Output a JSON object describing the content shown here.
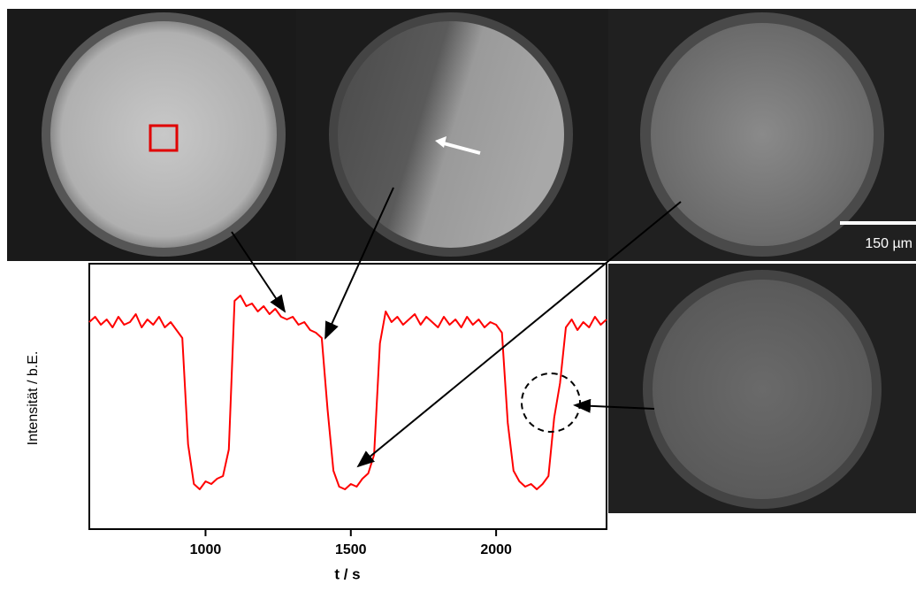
{
  "chart_data": {
    "type": "line",
    "xlabel": "t / s",
    "ylabel": "Intensität / b.E.",
    "color": "#ff0000",
    "xlim": [
      600,
      2380
    ],
    "xticks": [
      1000,
      1500,
      2000
    ],
    "ylim": [
      0,
      1
    ],
    "x": [
      600,
      620,
      640,
      660,
      680,
      700,
      720,
      740,
      760,
      780,
      800,
      820,
      840,
      860,
      880,
      900,
      920,
      940,
      960,
      980,
      1000,
      1020,
      1040,
      1060,
      1080,
      1100,
      1120,
      1140,
      1160,
      1180,
      1200,
      1220,
      1240,
      1260,
      1280,
      1300,
      1320,
      1340,
      1360,
      1380,
      1400,
      1420,
      1440,
      1460,
      1480,
      1500,
      1520,
      1540,
      1560,
      1580,
      1600,
      1620,
      1640,
      1660,
      1680,
      1700,
      1720,
      1740,
      1760,
      1780,
      1800,
      1820,
      1840,
      1860,
      1880,
      1900,
      1920,
      1940,
      1960,
      1980,
      2000,
      2020,
      2040,
      2060,
      2080,
      2100,
      2120,
      2140,
      2160,
      2180,
      2200,
      2220,
      2240,
      2260,
      2280,
      2300,
      2320,
      2340,
      2360,
      2380
    ],
    "values": [
      0.78,
      0.8,
      0.77,
      0.79,
      0.76,
      0.8,
      0.77,
      0.78,
      0.81,
      0.76,
      0.79,
      0.77,
      0.8,
      0.76,
      0.78,
      0.75,
      0.72,
      0.32,
      0.17,
      0.15,
      0.18,
      0.17,
      0.19,
      0.2,
      0.3,
      0.86,
      0.88,
      0.84,
      0.85,
      0.82,
      0.84,
      0.81,
      0.83,
      0.8,
      0.79,
      0.8,
      0.77,
      0.78,
      0.75,
      0.74,
      0.72,
      0.45,
      0.22,
      0.16,
      0.15,
      0.17,
      0.16,
      0.19,
      0.21,
      0.28,
      0.7,
      0.82,
      0.78,
      0.8,
      0.77,
      0.79,
      0.81,
      0.77,
      0.8,
      0.78,
      0.76,
      0.8,
      0.77,
      0.79,
      0.76,
      0.8,
      0.77,
      0.79,
      0.76,
      0.78,
      0.77,
      0.74,
      0.4,
      0.22,
      0.18,
      0.16,
      0.17,
      0.15,
      0.17,
      0.2,
      0.42,
      0.55,
      0.76,
      0.79,
      0.75,
      0.78,
      0.76,
      0.8,
      0.77,
      0.79
    ]
  },
  "figure": {
    "scale_bar_label": "150 µm"
  }
}
